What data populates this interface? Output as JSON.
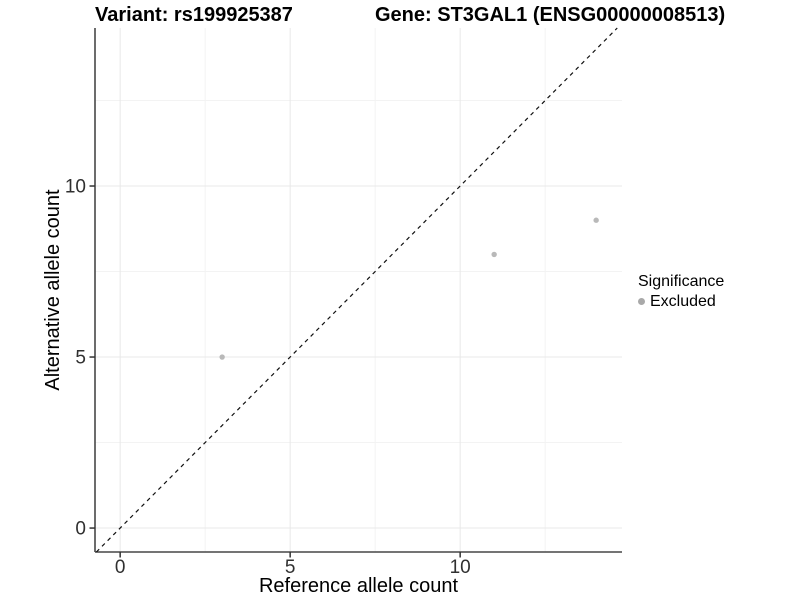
{
  "header": {
    "title_left": "Variant: rs199925387",
    "title_right": "Gene: ST3GAL1 (ENSG00000008513)"
  },
  "chart_data": {
    "type": "scatter",
    "title": "Variant: rs199925387 — Gene: ST3GAL1 (ENSG00000008513)",
    "xlabel": "Reference allele count",
    "ylabel": "Alternative allele count",
    "xlim": [
      -0.74,
      14.76
    ],
    "ylim": [
      -0.7,
      14.62
    ],
    "x_ticks": [
      0,
      5,
      10
    ],
    "y_ticks": [
      0,
      5,
      10
    ],
    "x_minor_ticks": [
      2.5,
      7.5,
      12.5
    ],
    "y_minor_ticks": [
      2.5,
      7.5,
      12.5
    ],
    "grid": "major and minor gridlines on white background",
    "identity_line": {
      "equation": "y = x",
      "style": "dashed",
      "color": "#111111"
    },
    "series": [
      {
        "name": "Excluded",
        "marker": "circle",
        "color": "#b9b9b9",
        "points": [
          [
            3,
            5
          ],
          [
            11,
            8
          ],
          [
            14,
            9
          ]
        ]
      }
    ],
    "legend": {
      "title": "Significance",
      "position": "right",
      "items": [
        {
          "label": "Excluded",
          "marker": "circle",
          "color": "#a9a9a9"
        }
      ]
    }
  },
  "colors": {
    "background": "#ffffff",
    "grid_major": "#e8e8e8",
    "grid_minor": "#f3f3f3",
    "axis_line": "#474747",
    "tick_mark": "#333333",
    "tick_text": "#303030",
    "point": "#b9b9b9"
  }
}
